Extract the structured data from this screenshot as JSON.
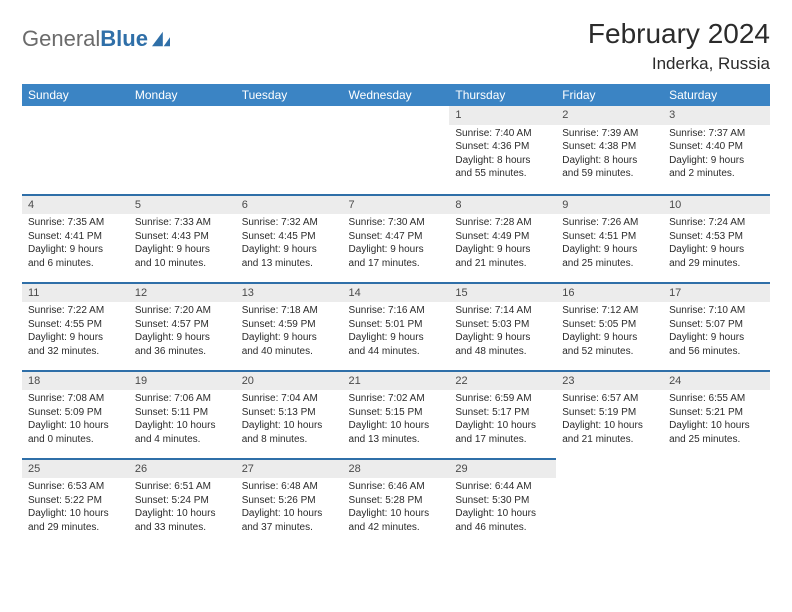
{
  "brand": {
    "part1": "General",
    "part2": "Blue"
  },
  "title": "February 2024",
  "location": "Inderka, Russia",
  "colors": {
    "header_bg": "#3b84c4",
    "header_text": "#ffffff",
    "daynum_bg": "#ececec",
    "border": "#2f6fa8",
    "brand_gray": "#6b6b6b",
    "brand_blue": "#2f6fa8"
  },
  "day_headers": [
    "Sunday",
    "Monday",
    "Tuesday",
    "Wednesday",
    "Thursday",
    "Friday",
    "Saturday"
  ],
  "weeks": [
    [
      null,
      null,
      null,
      null,
      {
        "n": "1",
        "sr": "Sunrise: 7:40 AM",
        "ss": "Sunset: 4:36 PM",
        "d1": "Daylight: 8 hours",
        "d2": "and 55 minutes."
      },
      {
        "n": "2",
        "sr": "Sunrise: 7:39 AM",
        "ss": "Sunset: 4:38 PM",
        "d1": "Daylight: 8 hours",
        "d2": "and 59 minutes."
      },
      {
        "n": "3",
        "sr": "Sunrise: 7:37 AM",
        "ss": "Sunset: 4:40 PM",
        "d1": "Daylight: 9 hours",
        "d2": "and 2 minutes."
      }
    ],
    [
      {
        "n": "4",
        "sr": "Sunrise: 7:35 AM",
        "ss": "Sunset: 4:41 PM",
        "d1": "Daylight: 9 hours",
        "d2": "and 6 minutes."
      },
      {
        "n": "5",
        "sr": "Sunrise: 7:33 AM",
        "ss": "Sunset: 4:43 PM",
        "d1": "Daylight: 9 hours",
        "d2": "and 10 minutes."
      },
      {
        "n": "6",
        "sr": "Sunrise: 7:32 AM",
        "ss": "Sunset: 4:45 PM",
        "d1": "Daylight: 9 hours",
        "d2": "and 13 minutes."
      },
      {
        "n": "7",
        "sr": "Sunrise: 7:30 AM",
        "ss": "Sunset: 4:47 PM",
        "d1": "Daylight: 9 hours",
        "d2": "and 17 minutes."
      },
      {
        "n": "8",
        "sr": "Sunrise: 7:28 AM",
        "ss": "Sunset: 4:49 PM",
        "d1": "Daylight: 9 hours",
        "d2": "and 21 minutes."
      },
      {
        "n": "9",
        "sr": "Sunrise: 7:26 AM",
        "ss": "Sunset: 4:51 PM",
        "d1": "Daylight: 9 hours",
        "d2": "and 25 minutes."
      },
      {
        "n": "10",
        "sr": "Sunrise: 7:24 AM",
        "ss": "Sunset: 4:53 PM",
        "d1": "Daylight: 9 hours",
        "d2": "and 29 minutes."
      }
    ],
    [
      {
        "n": "11",
        "sr": "Sunrise: 7:22 AM",
        "ss": "Sunset: 4:55 PM",
        "d1": "Daylight: 9 hours",
        "d2": "and 32 minutes."
      },
      {
        "n": "12",
        "sr": "Sunrise: 7:20 AM",
        "ss": "Sunset: 4:57 PM",
        "d1": "Daylight: 9 hours",
        "d2": "and 36 minutes."
      },
      {
        "n": "13",
        "sr": "Sunrise: 7:18 AM",
        "ss": "Sunset: 4:59 PM",
        "d1": "Daylight: 9 hours",
        "d2": "and 40 minutes."
      },
      {
        "n": "14",
        "sr": "Sunrise: 7:16 AM",
        "ss": "Sunset: 5:01 PM",
        "d1": "Daylight: 9 hours",
        "d2": "and 44 minutes."
      },
      {
        "n": "15",
        "sr": "Sunrise: 7:14 AM",
        "ss": "Sunset: 5:03 PM",
        "d1": "Daylight: 9 hours",
        "d2": "and 48 minutes."
      },
      {
        "n": "16",
        "sr": "Sunrise: 7:12 AM",
        "ss": "Sunset: 5:05 PM",
        "d1": "Daylight: 9 hours",
        "d2": "and 52 minutes."
      },
      {
        "n": "17",
        "sr": "Sunrise: 7:10 AM",
        "ss": "Sunset: 5:07 PM",
        "d1": "Daylight: 9 hours",
        "d2": "and 56 minutes."
      }
    ],
    [
      {
        "n": "18",
        "sr": "Sunrise: 7:08 AM",
        "ss": "Sunset: 5:09 PM",
        "d1": "Daylight: 10 hours",
        "d2": "and 0 minutes."
      },
      {
        "n": "19",
        "sr": "Sunrise: 7:06 AM",
        "ss": "Sunset: 5:11 PM",
        "d1": "Daylight: 10 hours",
        "d2": "and 4 minutes."
      },
      {
        "n": "20",
        "sr": "Sunrise: 7:04 AM",
        "ss": "Sunset: 5:13 PM",
        "d1": "Daylight: 10 hours",
        "d2": "and 8 minutes."
      },
      {
        "n": "21",
        "sr": "Sunrise: 7:02 AM",
        "ss": "Sunset: 5:15 PM",
        "d1": "Daylight: 10 hours",
        "d2": "and 13 minutes."
      },
      {
        "n": "22",
        "sr": "Sunrise: 6:59 AM",
        "ss": "Sunset: 5:17 PM",
        "d1": "Daylight: 10 hours",
        "d2": "and 17 minutes."
      },
      {
        "n": "23",
        "sr": "Sunrise: 6:57 AM",
        "ss": "Sunset: 5:19 PM",
        "d1": "Daylight: 10 hours",
        "d2": "and 21 minutes."
      },
      {
        "n": "24",
        "sr": "Sunrise: 6:55 AM",
        "ss": "Sunset: 5:21 PM",
        "d1": "Daylight: 10 hours",
        "d2": "and 25 minutes."
      }
    ],
    [
      {
        "n": "25",
        "sr": "Sunrise: 6:53 AM",
        "ss": "Sunset: 5:22 PM",
        "d1": "Daylight: 10 hours",
        "d2": "and 29 minutes."
      },
      {
        "n": "26",
        "sr": "Sunrise: 6:51 AM",
        "ss": "Sunset: 5:24 PM",
        "d1": "Daylight: 10 hours",
        "d2": "and 33 minutes."
      },
      {
        "n": "27",
        "sr": "Sunrise: 6:48 AM",
        "ss": "Sunset: 5:26 PM",
        "d1": "Daylight: 10 hours",
        "d2": "and 37 minutes."
      },
      {
        "n": "28",
        "sr": "Sunrise: 6:46 AM",
        "ss": "Sunset: 5:28 PM",
        "d1": "Daylight: 10 hours",
        "d2": "and 42 minutes."
      },
      {
        "n": "29",
        "sr": "Sunrise: 6:44 AM",
        "ss": "Sunset: 5:30 PM",
        "d1": "Daylight: 10 hours",
        "d2": "and 46 minutes."
      },
      null,
      null
    ]
  ]
}
